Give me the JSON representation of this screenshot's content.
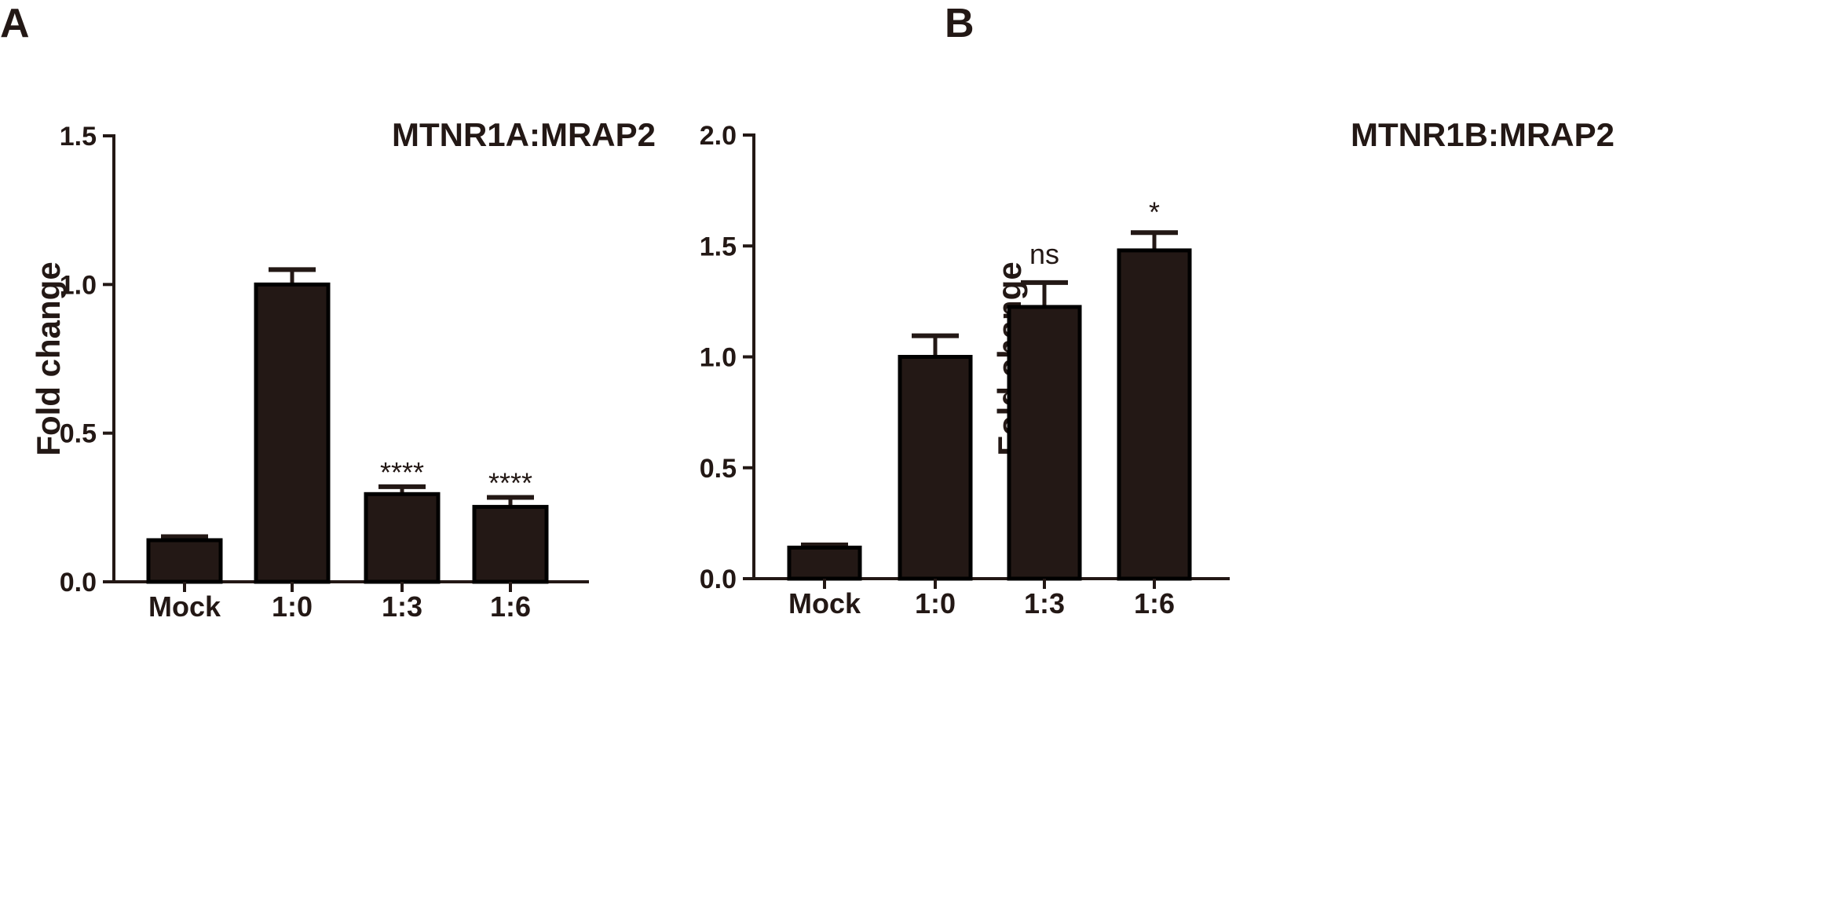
{
  "chart_data": [
    {
      "panel": "A",
      "type": "bar",
      "title": "MTNR1A:MRAP2",
      "xlabel": "",
      "ylabel": "Fold change",
      "ylim": [
        0,
        1.5
      ],
      "yticks": [
        "0.0",
        "0.5",
        "1.0",
        "1.5"
      ],
      "ytick_values": [
        0,
        0.5,
        1.0,
        1.5
      ],
      "categories": [
        "Mock",
        "1:0",
        "1:3",
        "1:6"
      ],
      "values": [
        0.14,
        1.0,
        0.295,
        0.252
      ],
      "errors": [
        0.012,
        0.05,
        0.025,
        0.032
      ],
      "annotations": [
        "",
        "",
        "****",
        "****"
      ],
      "color": "#231815"
    },
    {
      "panel": "B",
      "type": "bar",
      "title": "MTNR1B:MRAP2",
      "xlabel": "",
      "ylabel": "Fold change",
      "ylim": [
        0,
        2.0
      ],
      "yticks": [
        "0.0",
        "0.5",
        "1.0",
        "1.5",
        "2.0"
      ],
      "ytick_values": [
        0,
        0.5,
        1.0,
        1.5,
        2.0
      ],
      "categories": [
        "Mock",
        "1:0",
        "1:3",
        "1:6"
      ],
      "values": [
        0.14,
        1.0,
        1.225,
        1.48
      ],
      "errors": [
        0.012,
        0.095,
        0.11,
        0.08
      ],
      "annotations": [
        "",
        "",
        "ns",
        "*"
      ],
      "color": "#231815"
    }
  ]
}
